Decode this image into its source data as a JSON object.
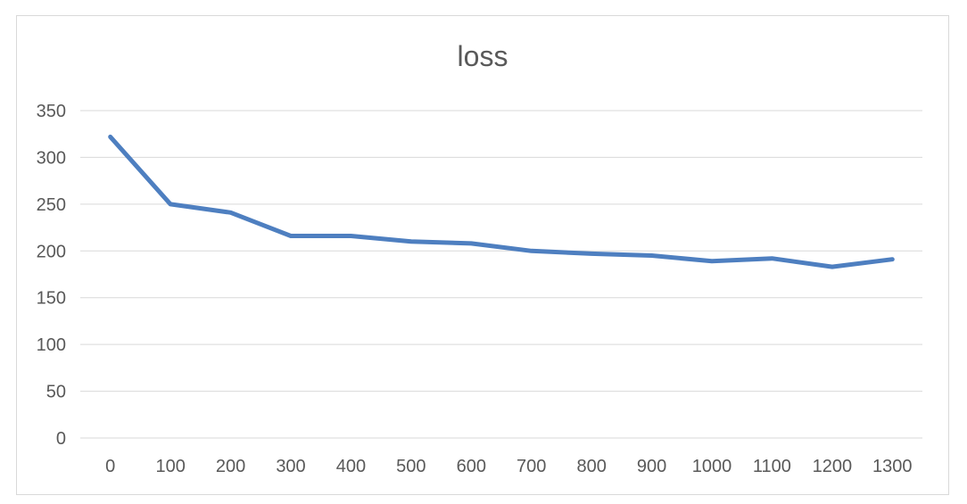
{
  "chart_data": {
    "type": "line",
    "title": "loss",
    "xlabel": "",
    "ylabel": "",
    "x": [
      0,
      100,
      200,
      300,
      400,
      500,
      600,
      700,
      800,
      900,
      1000,
      1100,
      1200,
      1300
    ],
    "series": [
      {
        "values": [
          322,
          250,
          241,
          216,
          216,
          210,
          208,
          200,
          197,
          195,
          189,
          192,
          183,
          191
        ]
      }
    ],
    "ylim": [
      0,
      350
    ],
    "yticks": [
      0,
      50,
      100,
      150,
      200,
      250,
      300,
      350
    ],
    "grid": true,
    "legend": "none",
    "line_color": "#4e7fc0",
    "grid_color": "#d9d9d9",
    "text_color": "#595959"
  }
}
